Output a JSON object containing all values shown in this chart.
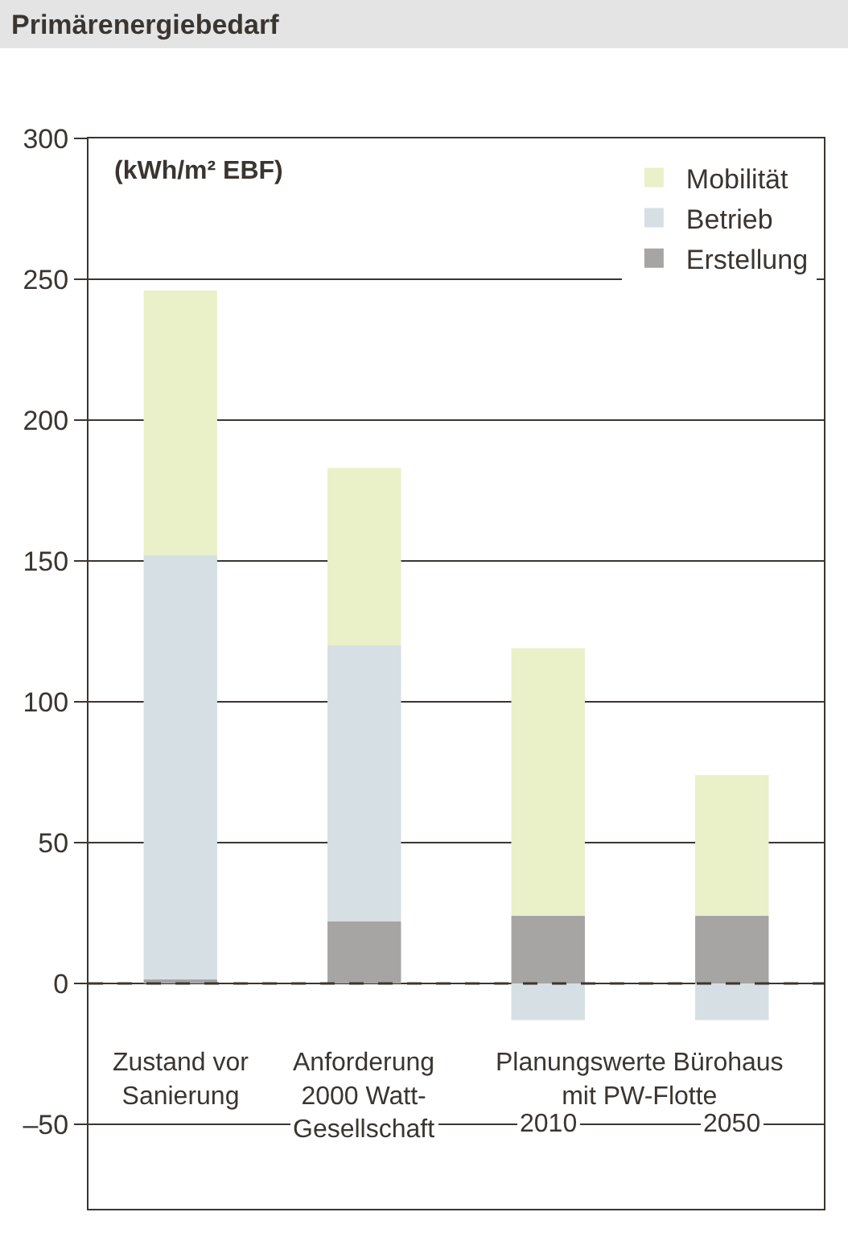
{
  "chart_data": {
    "type": "bar",
    "title": "Primärenergiebedarf",
    "ylabel": "(kWh/m² EBF)",
    "categories": [
      "Zustand vor Sanierung",
      "Anforderung 2000 Watt-Gesellschaft",
      "2010",
      "2050"
    ],
    "stacked": true,
    "series": [
      {
        "name": "Erstellung",
        "color": "#a6a5a3",
        "values": [
          1.5,
          22,
          24,
          24
        ]
      },
      {
        "name": "Betrieb",
        "color": "#d6dfe3",
        "values": [
          150.5,
          98,
          -13,
          -13
        ]
      },
      {
        "name": "Mobilität",
        "color": "#eaf0c8",
        "values": [
          94,
          63,
          95,
          50
        ]
      }
    ],
    "annotations": [
      "Planungswerte Bürohaus mit PW-Flotte"
    ],
    "ref_lines": [
      {
        "axis": "y",
        "value": 0,
        "line_style": "dashed",
        "color": "#3a3530"
      }
    ],
    "ylim": [
      -80,
      300
    ],
    "yticks": [
      {
        "value": -50,
        "label": "–50"
      },
      0,
      50,
      100,
      150,
      200,
      250,
      300
    ],
    "grid": "y",
    "legend": "top right"
  }
}
